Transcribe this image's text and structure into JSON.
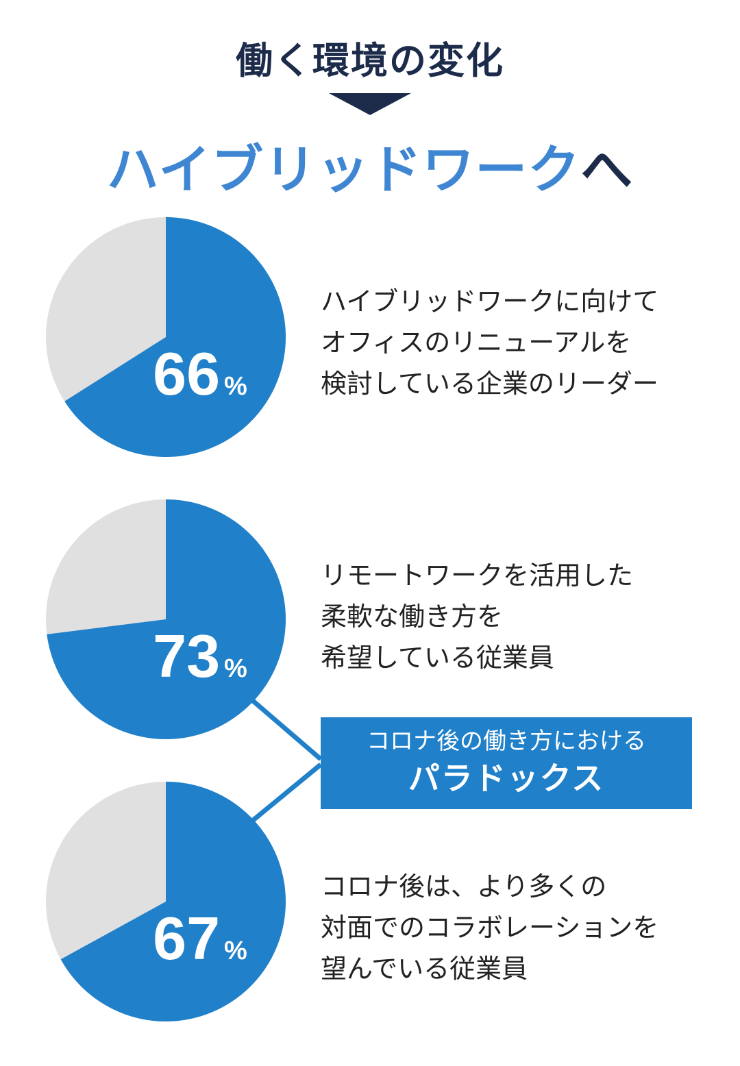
{
  "header": {
    "title": "働く環境の変化",
    "main_title_accent": "ハイブリッドワーク",
    "main_title_suffix": "へ"
  },
  "chart_data": [
    {
      "type": "pie",
      "value": 66,
      "unit": "%",
      "label_value": "66",
      "label_unit": "%",
      "description": [
        "ハイブリッドワークに向けて",
        "オフィスのリニューアルを",
        "検討している企業のリーダー"
      ]
    },
    {
      "type": "pie",
      "value": 73,
      "unit": "%",
      "label_value": "73",
      "label_unit": "%",
      "description": [
        "リモートワークを活用した",
        "柔軟な働き方を",
        "希望している従業員"
      ]
    },
    {
      "type": "pie",
      "value": 67,
      "unit": "%",
      "label_value": "67",
      "label_unit": "%",
      "description": [
        "コロナ後は、より多くの",
        "対面でのコラボレーションを",
        "望んでいる従業員"
      ]
    }
  ],
  "callout": {
    "line1": "コロナ後の働き方における",
    "line2": "パラドックス"
  },
  "colors": {
    "pie_fill": "#2080c9",
    "pie_rest": "#e0e0e0",
    "accent_title": "#3f86d2",
    "navy": "#1c2b4a",
    "label_text": "#ffffff"
  }
}
